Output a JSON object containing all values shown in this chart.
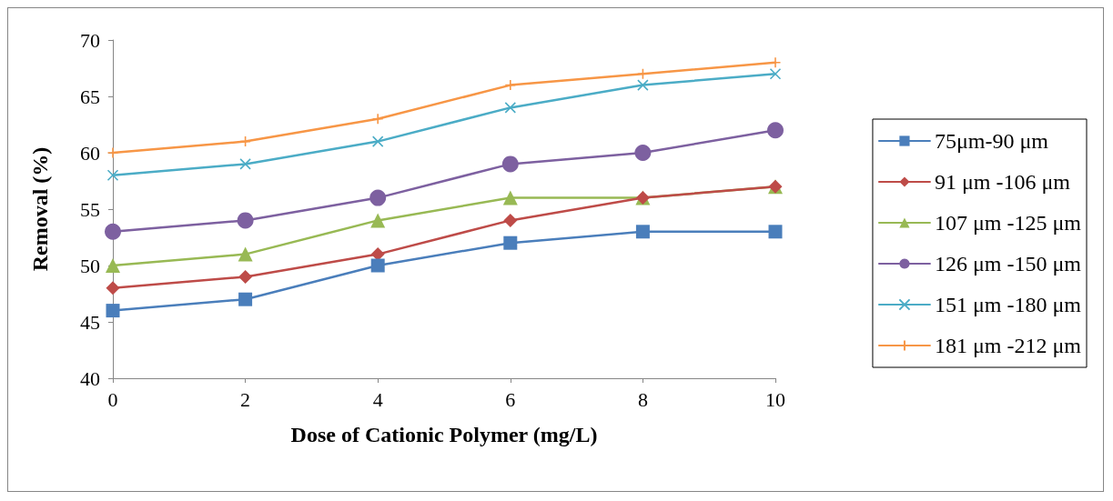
{
  "chart_data": {
    "type": "line",
    "xlabel": "Dose of Cationic Polymer (mg/L)",
    "ylabel": "Removal (%)",
    "x": [
      0,
      2,
      4,
      6,
      8,
      10
    ],
    "xlim": [
      0,
      10
    ],
    "xticks": [
      0,
      2,
      4,
      6,
      8,
      10
    ],
    "ylim": [
      40,
      70
    ],
    "yticks": [
      40,
      45,
      50,
      55,
      60,
      65,
      70
    ],
    "grid": false,
    "legend": "right",
    "line_style": "solid",
    "series": [
      {
        "name": "75μm-90 μm",
        "color": "#4a7ebb",
        "marker": "square",
        "values": [
          46,
          47,
          50,
          52,
          53,
          53
        ]
      },
      {
        "name": "91 μm -106 μm",
        "color": "#be4b48",
        "marker": "diamond",
        "values": [
          48,
          49,
          51,
          54,
          56,
          57
        ]
      },
      {
        "name": "107 μm -125 μm",
        "color": "#98b954",
        "marker": "triangle",
        "values": [
          50,
          51,
          54,
          56,
          56,
          57
        ]
      },
      {
        "name": "126 μm -150 μm",
        "color": "#7d60a0",
        "marker": "circle",
        "values": [
          53,
          54,
          56,
          59,
          60,
          62
        ]
      },
      {
        "name": "151 μm -180 μm",
        "color": "#4bacc6",
        "marker": "cross",
        "values": [
          58,
          59,
          61,
          64,
          66,
          67
        ]
      },
      {
        "name": "181 μm -212 μm",
        "color": "#f79646",
        "marker": "plus",
        "values": [
          60,
          61,
          63,
          66,
          67,
          68
        ]
      }
    ]
  }
}
